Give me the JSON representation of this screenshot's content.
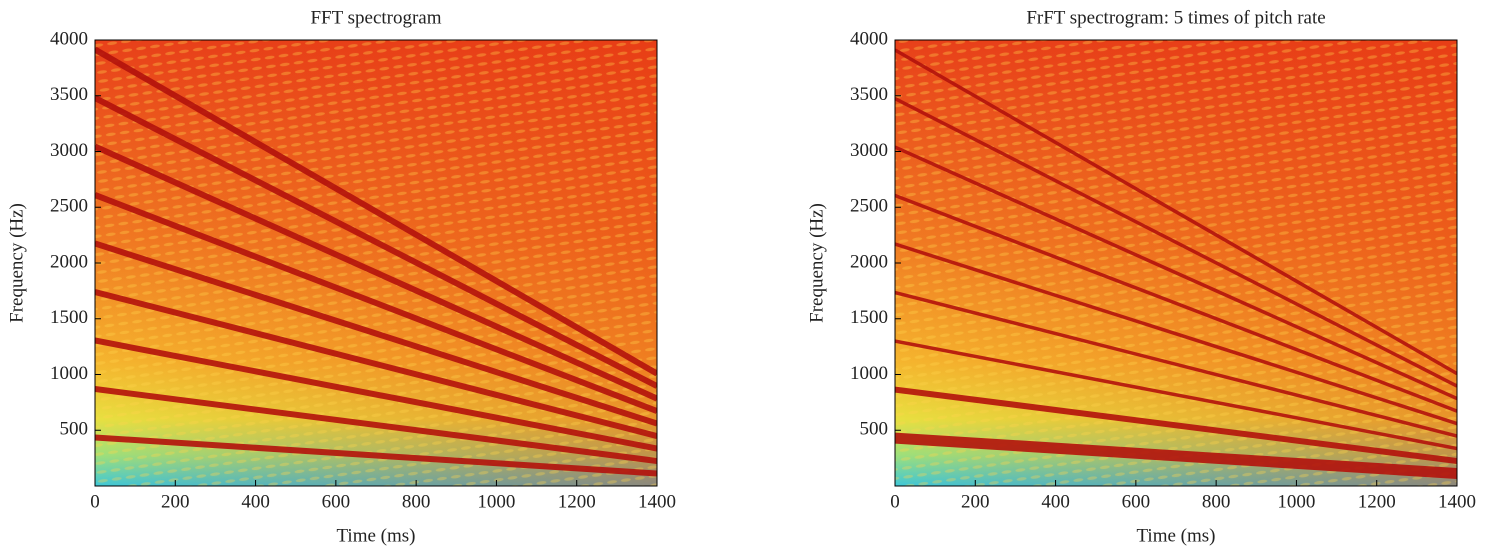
{
  "chart_data": [
    {
      "type": "spectrogram",
      "title": "FFT spectrogram",
      "xlabel": "Time (ms)",
      "ylabel": "Frequency (Hz)",
      "xlim": [
        0,
        1400
      ],
      "ylim": [
        0,
        4000
      ],
      "xticks": [
        0,
        200,
        400,
        600,
        800,
        1000,
        1200,
        1400
      ],
      "yticks": [
        500,
        1000,
        1500,
        2000,
        2500,
        3000,
        3500,
        4000
      ],
      "x": [
        0,
        1400
      ],
      "series": [
        {
          "color": "#b3120c",
          "values": [
            435,
            112
          ]
        },
        {
          "color": "#b3120c",
          "values": [
            870,
            224
          ]
        },
        {
          "color": "#b3120c",
          "values": [
            1305,
            336
          ]
        },
        {
          "color": "#b3120c",
          "values": [
            1740,
            448
          ]
        },
        {
          "color": "#b3120c",
          "values": [
            2175,
            560
          ]
        },
        {
          "color": "#b3120c",
          "values": [
            2610,
            672
          ]
        },
        {
          "color": "#b3120c",
          "values": [
            3045,
            784
          ]
        },
        {
          "color": "#b3120c",
          "values": [
            3480,
            896
          ]
        },
        {
          "color": "#b3120c",
          "values": [
            3915,
            1008
          ]
        }
      ]
    },
    {
      "type": "spectrogram",
      "title": "FrFT spectrogram: 5 times of pitch rate",
      "xlabel": "Time (ms)",
      "ylabel": "Frequency (Hz)",
      "xlim": [
        0,
        1400
      ],
      "ylim": [
        0,
        4000
      ],
      "xticks": [
        0,
        200,
        400,
        600,
        800,
        1000,
        1200,
        1400
      ],
      "yticks": [
        500,
        1000,
        1500,
        2000,
        2500,
        3000,
        3500,
        4000
      ],
      "x": [
        0,
        1400
      ],
      "series": [
        {
          "color": "#b3120c",
          "values": [
            430,
            112
          ]
        },
        {
          "color": "#b3120c",
          "values": [
            865,
            224
          ]
        },
        {
          "color": "#b3120c",
          "values": [
            1300,
            336
          ]
        },
        {
          "color": "#b3120c",
          "values": [
            1735,
            448
          ]
        },
        {
          "color": "#b3120c",
          "values": [
            2170,
            560
          ]
        },
        {
          "color": "#b3120c",
          "values": [
            2605,
            672
          ]
        },
        {
          "color": "#b3120c",
          "values": [
            3040,
            784
          ]
        },
        {
          "color": "#b3120c",
          "values": [
            3475,
            896
          ]
        },
        {
          "color": "#b3120c",
          "values": [
            3910,
            1008
          ]
        }
      ]
    }
  ]
}
